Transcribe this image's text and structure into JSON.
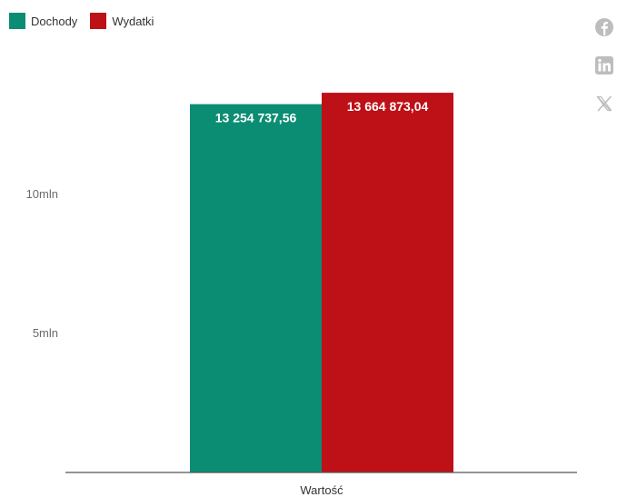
{
  "legend": [
    {
      "label": "Dochody",
      "color": "#0B8D73"
    },
    {
      "label": "Wydatki",
      "color": "#BE1017"
    }
  ],
  "share_icons": [
    "facebook-icon",
    "linkedin-icon",
    "x-twitter-icon"
  ],
  "chart_data": {
    "type": "bar",
    "categories": [
      "Wartość"
    ],
    "series": [
      {
        "name": "Dochody",
        "values": [
          13254737.56
        ],
        "label": "13 254 737,56",
        "color": "#0B8D73"
      },
      {
        "name": "Wydatki",
        "values": [
          13664873.04
        ],
        "label": "13 664 873,04",
        "color": "#BE1017"
      }
    ],
    "yticks": [
      {
        "value": 5000000,
        "label": "5mln"
      },
      {
        "value": 10000000,
        "label": "10mln"
      }
    ],
    "ylim": [
      0,
      15000000
    ],
    "grid": false,
    "legend_position": "top-left"
  }
}
